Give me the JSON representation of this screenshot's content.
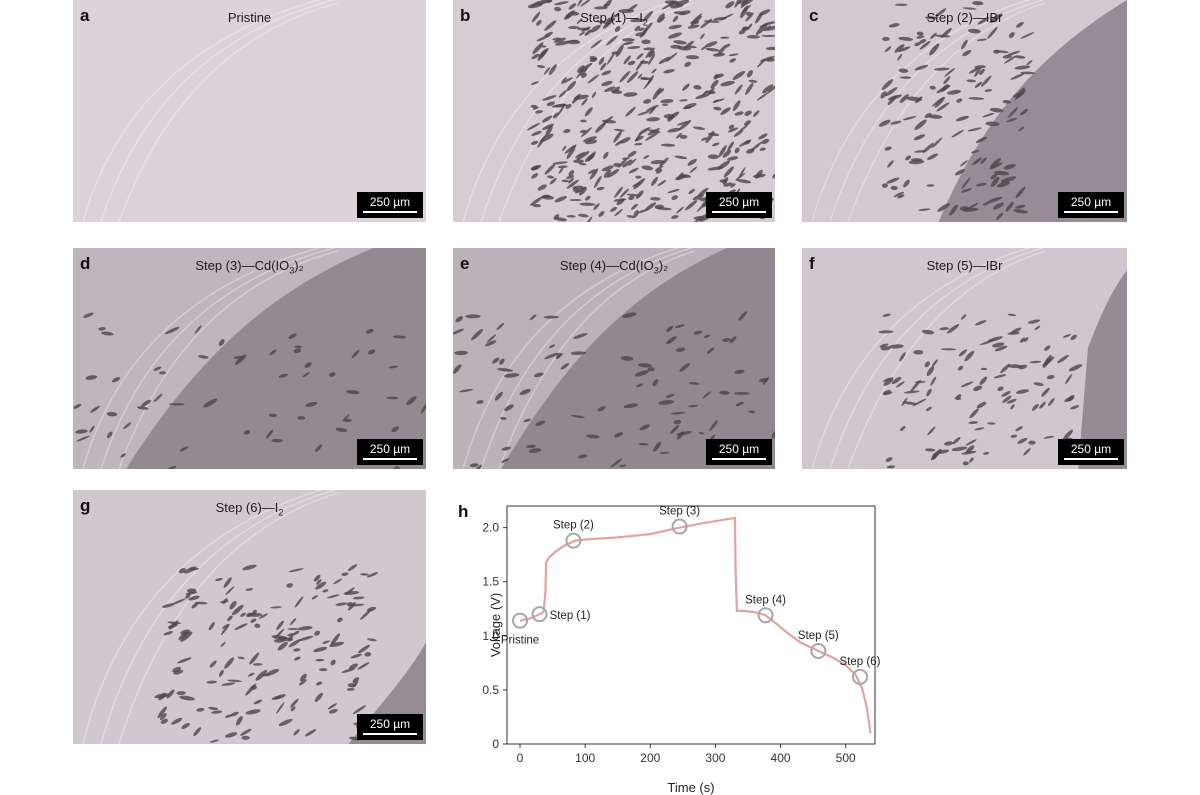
{
  "panels": [
    {
      "letter": "a",
      "caption": "Pristine",
      "caption_sub": "",
      "caption_post": "",
      "scale": "250 µm",
      "tint": "#dcd2da",
      "density": 0,
      "dark": 0
    },
    {
      "letter": "b",
      "caption": "Step (1)—I",
      "caption_sub": "2",
      "caption_post": "",
      "scale": "250 µm",
      "tint": "#d6ccd4",
      "density": 420,
      "dark": 0
    },
    {
      "letter": "c",
      "caption": "Step (2)—IBr",
      "caption_sub": "",
      "caption_post": "",
      "scale": "250 µm",
      "tint": "#d3c9d1",
      "density": 140,
      "dark": 1
    },
    {
      "letter": "d",
      "caption": "Step (3)—Cd(IO",
      "caption_sub": "3",
      "caption_post": ")₂",
      "scale": "250 µm",
      "tint": "#bfb5bd",
      "density": 60,
      "dark": 2
    },
    {
      "letter": "e",
      "caption": "Step (4)—Cd(IO",
      "caption_sub": "3",
      "caption_post": ")₂",
      "scale": "250 µm",
      "tint": "#bbb1b9",
      "density": 90,
      "dark": 2
    },
    {
      "letter": "f",
      "caption": "Step (5)—IBr",
      "caption_sub": "",
      "caption_post": "",
      "scale": "250 µm",
      "tint": "#d0c6ce",
      "density": 110,
      "dark": 3
    },
    {
      "letter": "g",
      "caption": "Step (6)—I",
      "caption_sub": "2",
      "caption_post": "",
      "scale": "250 µm",
      "tint": "#d1c8cf",
      "density": 160,
      "dark": 4
    }
  ],
  "chart_data": {
    "type": "line",
    "panel_letter": "h",
    "xlabel": "Time (s)",
    "ylabel": "Voltage (V)",
    "xlim": [
      -20,
      545
    ],
    "ylim": [
      0,
      2.2
    ],
    "xticks": [
      0,
      100,
      200,
      300,
      400,
      500
    ],
    "yticks": [
      0,
      0.5,
      1.0,
      1.5,
      2.0
    ],
    "ytick_labels": [
      "0",
      "0.5",
      "1.0",
      "1.5",
      "2.0"
    ],
    "line_color": "#e5a39d",
    "series": [
      {
        "x": [
          0,
          15,
          30,
          36,
          39,
          40,
          44,
          55,
          70,
          85,
          100,
          150,
          200,
          245,
          280,
          310,
          330,
          331,
          333,
          340,
          360,
          377,
          390,
          410,
          430,
          458,
          480,
          500,
          515,
          525,
          532,
          536,
          538
        ],
        "y": [
          1.14,
          1.16,
          1.2,
          1.22,
          1.4,
          1.68,
          1.72,
          1.78,
          1.84,
          1.88,
          1.89,
          1.91,
          1.94,
          2.0,
          2.04,
          2.07,
          2.09,
          1.6,
          1.23,
          1.23,
          1.22,
          1.19,
          1.13,
          1.03,
          0.94,
          0.86,
          0.8,
          0.73,
          0.64,
          0.52,
          0.35,
          0.2,
          0.1
        ]
      }
    ],
    "markers": [
      {
        "label": "Pristine",
        "x": 0,
        "y": 1.14,
        "pos": "below"
      },
      {
        "label": "Step (1)",
        "x": 30,
        "y": 1.2,
        "pos": "right"
      },
      {
        "label": "Step (2)",
        "x": 82,
        "y": 1.88,
        "pos": "above"
      },
      {
        "label": "Step (3)",
        "x": 245,
        "y": 2.01,
        "pos": "above"
      },
      {
        "label": "Step (4)",
        "x": 377,
        "y": 1.19,
        "pos": "above"
      },
      {
        "label": "Step (5)",
        "x": 458,
        "y": 0.86,
        "pos": "above"
      },
      {
        "label": "Step (6)",
        "x": 522,
        "y": 0.62,
        "pos": "above"
      }
    ]
  }
}
